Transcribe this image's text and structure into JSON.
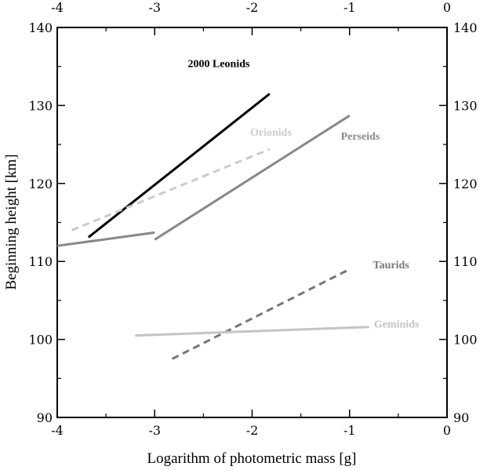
{
  "chart_data": {
    "type": "line",
    "title": "",
    "xlabel": "Logarithm of photometric mass [g]",
    "ylabel": "Beginning height [km]",
    "xlim": [
      -4,
      0
    ],
    "ylim": [
      90,
      140
    ],
    "x_ticks": [
      -4,
      -3,
      -2,
      -1,
      0
    ],
    "y_ticks": [
      90,
      100,
      110,
      120,
      130,
      140
    ],
    "x_tick_labels": [
      "-4",
      "-3",
      "-2",
      "-1",
      "0"
    ],
    "y_tick_labels": [
      "90",
      "100",
      "110",
      "120",
      "130",
      "140"
    ],
    "grid": false,
    "legend": "labels placed next to each line",
    "series": [
      {
        "name": "2000 Leonids",
        "color": "#000000",
        "dash": "solid",
        "points": [
          [
            -3.68,
            113.1
          ],
          [
            -1.82,
            131.5
          ]
        ],
        "label_at": [
          -2.66,
          134.9
        ]
      },
      {
        "name": "Orionids",
        "color": "#cccccc",
        "dash": "dashed",
        "points": [
          [
            -3.85,
            114.0
          ],
          [
            -1.82,
            124.4
          ]
        ],
        "label_at": [
          -2.02,
          126.1
        ]
      },
      {
        "name": "Perseids",
        "color": "#888888",
        "dash": "solid",
        "points": [
          [
            -4.0,
            112.0
          ],
          [
            -3.0,
            113.7
          ]
        ],
        "label_at": null
      },
      {
        "name": "Perseids",
        "color": "#888888",
        "dash": "solid",
        "points": [
          [
            -3.0,
            112.8
          ],
          [
            -1.0,
            128.7
          ]
        ],
        "label_at": [
          -1.09,
          125.6
        ]
      },
      {
        "name": "Taurids",
        "color": "#777777",
        "dash": "dashed",
        "points": [
          [
            -2.82,
            97.5
          ],
          [
            -1.0,
            109.0
          ]
        ],
        "label_at": [
          -0.76,
          109.1
        ]
      },
      {
        "name": "Geminids",
        "color": "#c4c4c4",
        "dash": "solid",
        "points": [
          [
            -3.2,
            100.5
          ],
          [
            -0.8,
            101.6
          ]
        ],
        "label_at": [
          -0.75,
          101.5
        ]
      }
    ]
  }
}
